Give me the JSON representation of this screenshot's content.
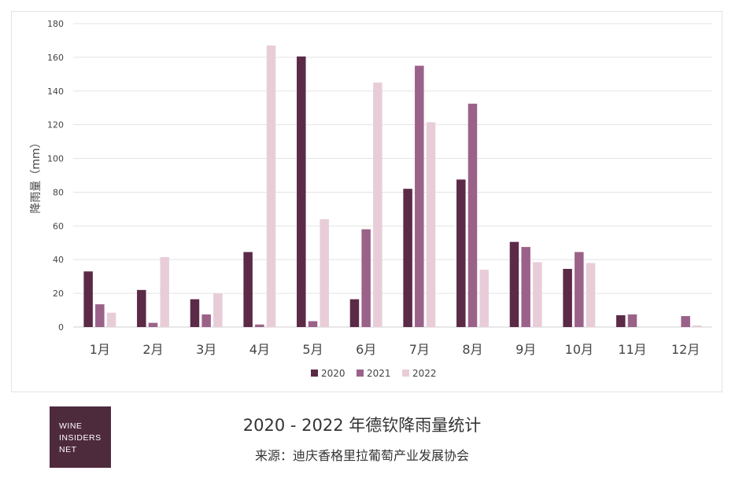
{
  "chart_data": {
    "type": "bar",
    "ylabel": "降雨量（mm）",
    "xlabel": "",
    "ylim": [
      0,
      180
    ],
    "yticks": [
      0,
      20,
      40,
      60,
      80,
      100,
      120,
      140,
      160,
      180
    ],
    "categories": [
      "1月",
      "2月",
      "3月",
      "4月",
      "5月",
      "6月",
      "7月",
      "8月",
      "9月",
      "10月",
      "11月",
      "12月"
    ],
    "series": [
      {
        "name": "2020",
        "color": "#5b2a47",
        "values": [
          33,
          22,
          16.5,
          44.5,
          160.5,
          16.5,
          82,
          87.5,
          50.5,
          34.5,
          7,
          0
        ]
      },
      {
        "name": "2021",
        "color": "#9b6289",
        "values": [
          13.5,
          2.5,
          7.5,
          1.5,
          3.5,
          58,
          155,
          132.5,
          47.5,
          44.5,
          7.5,
          6.5
        ]
      },
      {
        "name": "2022",
        "color": "#e8cdd9",
        "values": [
          8.5,
          41.5,
          20,
          167,
          64,
          145,
          121.5,
          34,
          38.5,
          38,
          0,
          1
        ]
      }
    ],
    "grid": true,
    "legend_position": "bottom"
  },
  "caption": {
    "title": "2020 - 2022 年德钦降雨量统计",
    "source": "来源：迪庆香格里拉葡萄产业发展协会"
  },
  "logo": {
    "lines": [
      "WINE",
      "INSIDERS",
      "NET"
    ],
    "color": "#4e2a3d"
  }
}
